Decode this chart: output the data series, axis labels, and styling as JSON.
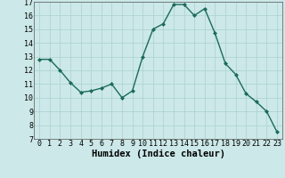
{
  "xlabel": "Humidex (Indice chaleur)",
  "x": [
    0,
    1,
    2,
    3,
    4,
    5,
    6,
    7,
    8,
    9,
    10,
    11,
    12,
    13,
    14,
    15,
    16,
    17,
    18,
    19,
    20,
    21,
    22,
    23
  ],
  "y": [
    12.8,
    12.8,
    12.0,
    11.1,
    10.4,
    10.5,
    10.7,
    11.0,
    10.0,
    10.5,
    13.0,
    15.0,
    15.4,
    16.8,
    16.8,
    16.0,
    16.5,
    14.7,
    12.5,
    11.7,
    10.3,
    9.7,
    9.0,
    7.5
  ],
  "line_color": "#1a6b5a",
  "marker": "D",
  "marker_size": 2.0,
  "bg_color": "#cce8e8",
  "grid_color": "#aad0d0",
  "ylim": [
    7,
    17
  ],
  "yticks": [
    7,
    8,
    9,
    10,
    11,
    12,
    13,
    14,
    15,
    16,
    17
  ],
  "xticks": [
    0,
    1,
    2,
    3,
    4,
    5,
    6,
    7,
    8,
    9,
    10,
    11,
    12,
    13,
    14,
    15,
    16,
    17,
    18,
    19,
    20,
    21,
    22,
    23
  ],
  "xlabel_fontsize": 7.5,
  "tick_fontsize": 6.0,
  "line_width": 1.0
}
